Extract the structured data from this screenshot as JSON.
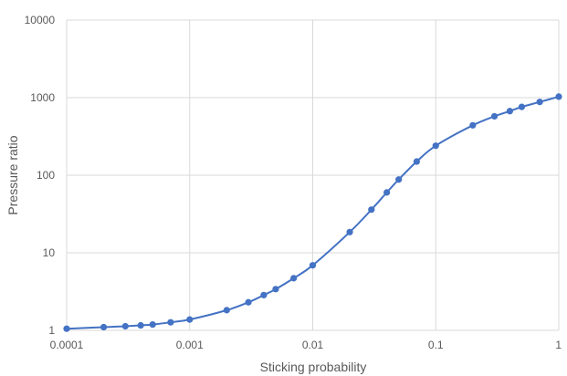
{
  "chart_data": {
    "type": "scatter",
    "xlabel": "Sticking probability",
    "ylabel": "Pressure ratio",
    "x_scale": "log",
    "y_scale": "log",
    "xlim": [
      0.0001,
      1
    ],
    "ylim": [
      1,
      10000
    ],
    "x_ticks": [
      "0.0001",
      "0.001",
      "0.01",
      "0.1",
      "1"
    ],
    "y_ticks": [
      "1",
      "10",
      "100",
      "1000",
      "10000"
    ],
    "grid": true,
    "legend": "none",
    "series": [
      {
        "color": "#4472c4",
        "marker": "circle",
        "line": "smoothed",
        "points": [
          {
            "x": 0.0001,
            "y": 1.05
          },
          {
            "x": 0.0002,
            "y": 1.1
          },
          {
            "x": 0.0003,
            "y": 1.13
          },
          {
            "x": 0.0004,
            "y": 1.16
          },
          {
            "x": 0.0005,
            "y": 1.19
          },
          {
            "x": 0.0007,
            "y": 1.27
          },
          {
            "x": 0.001,
            "y": 1.38
          },
          {
            "x": 0.002,
            "y": 1.82
          },
          {
            "x": 0.003,
            "y": 2.3
          },
          {
            "x": 0.004,
            "y": 2.85
          },
          {
            "x": 0.005,
            "y": 3.4
          },
          {
            "x": 0.007,
            "y": 4.7
          },
          {
            "x": 0.01,
            "y": 6.9
          },
          {
            "x": 0.02,
            "y": 18.5
          },
          {
            "x": 0.03,
            "y": 36
          },
          {
            "x": 0.04,
            "y": 60
          },
          {
            "x": 0.05,
            "y": 88
          },
          {
            "x": 0.07,
            "y": 150
          },
          {
            "x": 0.1,
            "y": 240
          },
          {
            "x": 0.2,
            "y": 440
          },
          {
            "x": 0.3,
            "y": 575
          },
          {
            "x": 0.4,
            "y": 670
          },
          {
            "x": 0.5,
            "y": 760
          },
          {
            "x": 0.7,
            "y": 880
          },
          {
            "x": 1,
            "y": 1030
          }
        ]
      }
    ]
  }
}
